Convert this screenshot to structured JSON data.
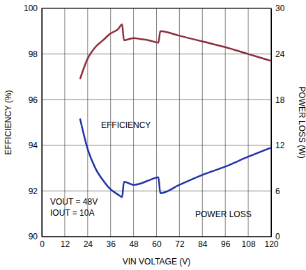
{
  "chart_data": {
    "type": "line",
    "x_label": "VIN VOLTAGE (V)",
    "y_label": "EFFICIENCY (%)",
    "y2_label": "POWER LOSS (W)",
    "annotations": [
      "EFFICIENCY",
      "POWER LOSS",
      "VOUT = 48V",
      "IOUT = 10A"
    ],
    "x": [
      20,
      24,
      28,
      32,
      36,
      40,
      42,
      43,
      48,
      52,
      56,
      61,
      62,
      72,
      84,
      96,
      108,
      120
    ],
    "series": [
      {
        "name": "EFFICIENCY",
        "color": "#8b2f3f",
        "values": [
          96.9,
          97.8,
          98.3,
          98.6,
          98.9,
          99.1,
          99.3,
          98.6,
          98.7,
          98.65,
          98.6,
          98.5,
          99.0,
          98.8,
          98.55,
          98.3,
          98.0,
          97.7
        ]
      },
      {
        "name": "POWER LOSS",
        "color": "#2233aa",
        "axis": "y2",
        "values": [
          15.5,
          11.5,
          9.0,
          7.4,
          6.2,
          5.5,
          5.2,
          7.2,
          6.8,
          7.0,
          7.4,
          7.8,
          5.7,
          6.8,
          8.1,
          9.2,
          10.5,
          11.7
        ]
      }
    ],
    "xlim": [
      0,
      120
    ],
    "xticks": [
      0,
      12,
      24,
      36,
      48,
      60,
      72,
      84,
      96,
      108,
      120
    ],
    "ylim": [
      90,
      100
    ],
    "yticks": [
      90,
      92,
      94,
      96,
      98,
      100
    ],
    "y2lim": [
      0,
      30
    ],
    "y2ticks": [
      0,
      6,
      12,
      18,
      24,
      30
    ],
    "grid": true
  }
}
